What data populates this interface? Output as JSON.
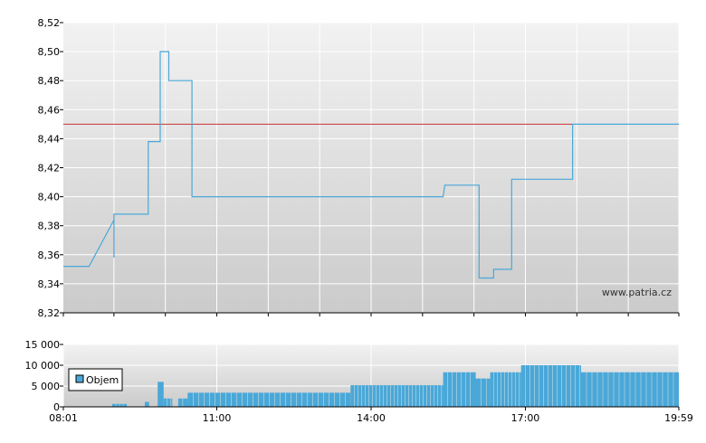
{
  "chart_data": [
    {
      "type": "line",
      "title": "",
      "watermark": "www.patria.cz",
      "y_ticks": [
        "8,52",
        "8,50",
        "8,48",
        "8,46",
        "8,44",
        "8,42",
        "8,40",
        "8,38",
        "8,36",
        "8,34",
        "8,32"
      ],
      "ylim": [
        8.32,
        8.52
      ],
      "reference_line": {
        "value": 8.45,
        "color": "#cc3333"
      },
      "series": [
        {
          "color": "#4aa8d8",
          "points": [
            [
              "08:01",
              8.352
            ],
            [
              "08:31",
              8.352
            ],
            [
              "09:00",
              8.384
            ],
            [
              "09:00",
              8.358
            ],
            [
              "09:00",
              8.388
            ],
            [
              "09:09",
              8.388
            ],
            [
              "09:40",
              8.388
            ],
            [
              "09:40",
              8.438
            ],
            [
              "09:54",
              8.438
            ],
            [
              "09:54",
              8.5
            ],
            [
              "10:04",
              8.5
            ],
            [
              "10:04",
              8.48
            ],
            [
              "10:31",
              8.48
            ],
            [
              "10:31",
              8.4
            ],
            [
              "15:24",
              8.4
            ],
            [
              "15:26",
              8.408
            ],
            [
              "16:06",
              8.408
            ],
            [
              "16:06",
              8.344
            ],
            [
              "16:23",
              8.344
            ],
            [
              "16:23",
              8.35
            ],
            [
              "16:44",
              8.35
            ],
            [
              "16:44",
              8.412
            ],
            [
              "17:55",
              8.412
            ],
            [
              "17:55",
              8.45
            ],
            [
              "19:59",
              8.45
            ]
          ]
        }
      ]
    },
    {
      "type": "bar",
      "y_ticks": [
        "15 000",
        "10 000",
        "5 000",
        "0"
      ],
      "x_ticks": [
        "08:01",
        "11:00",
        "14:00",
        "17:00",
        "19:59"
      ],
      "ylim": [
        0,
        15000
      ],
      "legend": {
        "label": "Objem",
        "position": "left"
      },
      "color": "#4aa8d8",
      "segments": [
        {
          "start": "08:58",
          "end": "09:15",
          "value": 700
        },
        {
          "start": "09:36",
          "end": "09:41",
          "value": 1200
        },
        {
          "start": "09:51",
          "end": "09:58",
          "value": 6000
        },
        {
          "start": "09:58",
          "end": "10:08",
          "value": 2000
        },
        {
          "start": "10:15",
          "end": "10:26",
          "value": 2000
        },
        {
          "start": "10:26",
          "end": "13:36",
          "value": 3400
        },
        {
          "start": "13:36",
          "end": "15:24",
          "value": 5200
        },
        {
          "start": "15:24",
          "end": "16:02",
          "value": 8300
        },
        {
          "start": "16:02",
          "end": "16:19",
          "value": 6800
        },
        {
          "start": "16:19",
          "end": "16:55",
          "value": 8300
        },
        {
          "start": "16:55",
          "end": "18:05",
          "value": 10000
        },
        {
          "start": "18:05",
          "end": "19:59",
          "value": 8300
        }
      ]
    }
  ]
}
